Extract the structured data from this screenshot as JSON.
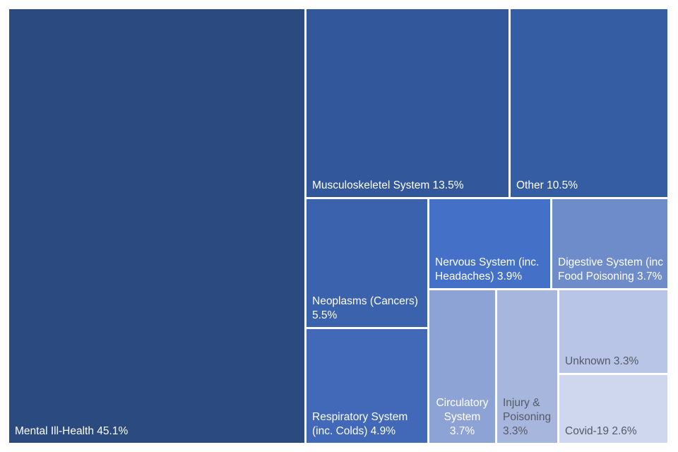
{
  "chart_data": {
    "type": "treemap",
    "title": "",
    "unit": "%",
    "items": [
      {
        "name": "Mental Ill-Health",
        "value": 45.1,
        "label": "Mental Ill-Health 45.1%",
        "color": "#2b4a7f"
      },
      {
        "name": "Musculoskeletel System",
        "value": 13.5,
        "label": "Musculoskeletel System 13.5%",
        "color": "#32579a"
      },
      {
        "name": "Other",
        "value": 10.5,
        "label": "Other 10.5%",
        "color": "#355da3"
      },
      {
        "name": "Neoplasms (Cancers)",
        "value": 5.5,
        "label": "Neoplasms (Cancers) 5.5%",
        "color": "#3b62ad"
      },
      {
        "name": "Nervous System (inc. Headaches)",
        "value": 3.9,
        "label": "Nervous System (inc. Headaches) 3.9%",
        "color": "#4471c7"
      },
      {
        "name": "Digestive System (inc Food Poisoning",
        "value": 3.7,
        "label": "Digestive System (inc Food Poisoning 3.7%",
        "color": "#6e8bca"
      },
      {
        "name": "Respiratory System (inc. Colds)",
        "value": 4.9,
        "label": "Respiratory System (inc. Colds) 4.9%",
        "color": "#4169b8"
      },
      {
        "name": "Circulatory System",
        "value": 3.7,
        "label": "Circulatory System 3.7%",
        "color": "#8ea3d5"
      },
      {
        "name": "Injury & Poisoning",
        "value": 3.3,
        "label": "Injury & Poisoning 3.3%",
        "color": "#a7b6dd"
      },
      {
        "name": "Unknown",
        "value": 3.3,
        "label": "Unknown 3.3%",
        "color": "#b9c5e6"
      },
      {
        "name": "Covid-19",
        "value": 2.6,
        "label": "Covid-19 2.6%",
        "color": "#cfd7ee"
      }
    ]
  }
}
